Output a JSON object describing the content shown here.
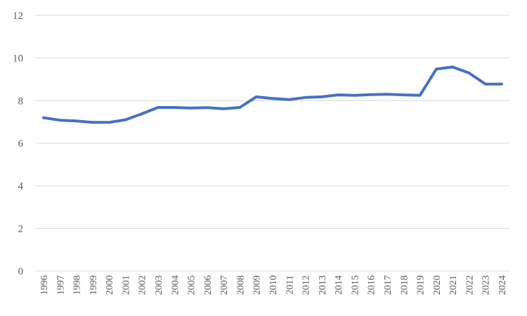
{
  "chart_data": {
    "type": "line",
    "x": [
      "1996",
      "1997",
      "1998",
      "1999",
      "2000",
      "2001",
      "2002",
      "2003",
      "2004",
      "2005",
      "2006",
      "2007",
      "2008",
      "2009",
      "2010",
      "2011",
      "2012",
      "2013",
      "2014",
      "2015",
      "2016",
      "2017",
      "2018",
      "2019",
      "2020",
      "2021",
      "2022",
      "2023",
      "2024"
    ],
    "series": [
      {
        "values": [
          7.2,
          7.08,
          7.05,
          6.98,
          6.98,
          7.1,
          7.38,
          7.68,
          7.68,
          7.65,
          7.67,
          7.62,
          7.68,
          8.18,
          8.1,
          8.05,
          8.15,
          8.18,
          8.27,
          8.25,
          8.28,
          8.3,
          8.27,
          8.25,
          9.48,
          9.58,
          9.3,
          8.78,
          8.78
        ],
        "color": "#4472C4"
      }
    ],
    "ylim": [
      0,
      12
    ],
    "yticks": [
      0,
      2,
      4,
      6,
      8,
      10,
      12
    ],
    "grid": "horizontal",
    "legend": "none",
    "colors": {
      "grid": "#d9d9d9",
      "text": "#595959"
    }
  }
}
